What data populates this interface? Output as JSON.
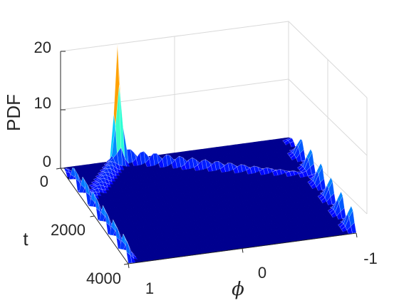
{
  "chart_data": {
    "type": "surface",
    "title": "",
    "zlabel": "PDF",
    "ylabel": "t",
    "xlabel": "ϕ",
    "zlim": [
      0,
      20
    ],
    "ylim": [
      0,
      4000
    ],
    "xlim": [
      -1,
      1
    ],
    "z_ticks": [
      "0",
      "10",
      "20"
    ],
    "t_ticks": [
      "0",
      "2000",
      "4000"
    ],
    "phi_ticks": [
      "1",
      "0",
      "-1"
    ],
    "colormap": "jet",
    "base_color": "#00008f",
    "grid": true,
    "features": {
      "peak": {
        "phi": 0.5,
        "t": 0,
        "pdf": 20
      },
      "ridges": [
        {
          "label": "phi=+1 band",
          "phi": 1.0,
          "t_range": [
            0,
            4000
          ],
          "pdf_max": 4
        },
        {
          "label": "phi=-1 band",
          "phi": -1.0,
          "t_range": [
            0,
            4000
          ],
          "pdf_max": 3.5
        }
      ]
    }
  }
}
